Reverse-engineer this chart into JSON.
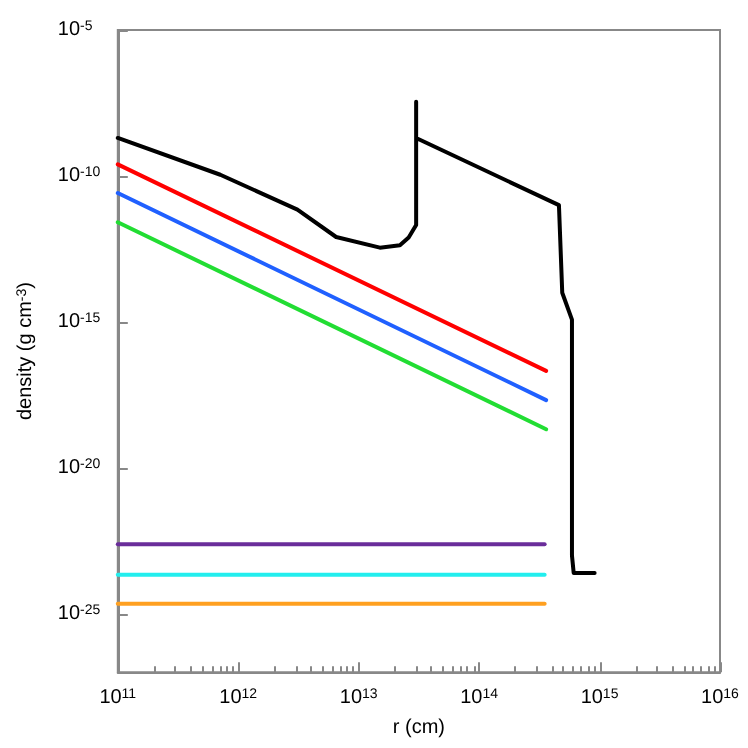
{
  "chart_data": {
    "type": "line",
    "xlabel": "r (cm)",
    "ylabel": "density (g cm$^{-3}$)",
    "log": "xy",
    "grid": false,
    "marker": "none",
    "line_style": "solid",
    "xlim": [
      100000000000.0,
      1e+16
    ],
    "ylim": [
      1e-27,
      1e-05
    ],
    "xticks": [
      {
        "value": 100000000000.0,
        "label": "10$^{11}$"
      },
      {
        "value": 1000000000000.0,
        "label": "10$^{12}$"
      },
      {
        "value": 10000000000000.0,
        "label": "10$^{13}$"
      },
      {
        "value": 100000000000000.0,
        "label": "10$^{14}$"
      },
      {
        "value": 1000000000000000.0,
        "label": "10$^{15}$"
      },
      {
        "value": 1e+16,
        "label": "10$^{16}$"
      }
    ],
    "yticks": [
      {
        "value": 1e-25,
        "label": "10$^{-25}$"
      },
      {
        "value": 1e-20,
        "label": "10$^{-20}$"
      },
      {
        "value": 1e-15,
        "label": "10$^{-15}$"
      },
      {
        "value": 1e-10,
        "label": "10$^{-10}$"
      },
      {
        "value": 1e-05,
        "label": "10$^{-5}$"
      }
    ],
    "series": [
      {
        "color": "#000000",
        "x": [
          100000000000.0,
          710000000000.0,
          3100000000000.0,
          6500000000000.0,
          15000000000000.0,
          22000000000000.0,
          26000000000000.0,
          30000000000000.0,
          30000000000000.0,
          30000000000000.0,
          460000000000000.0,
          490000000000000.0,
          590000000000000.0,
          590000000000000.0,
          610000000000000.0,
          910000000000000.0
        ],
        "values": [
          2e-09,
          1.1e-10,
          7e-12,
          8.1e-13,
          3.5e-13,
          4.2e-13,
          7.8e-13,
          2.1e-12,
          3.5e-08,
          2e-09,
          1e-11,
          1e-14,
          1.2e-15,
          1e-23,
          2.5e-24,
          2.5e-24
        ]
      },
      {
        "color": "#ff0000",
        "x": [
          100000000000.0,
          360000000000000.0
        ],
        "values": [
          2.5e-10,
          2.1e-17
        ]
      },
      {
        "color": "#2060ff",
        "x": [
          100000000000.0,
          360000000000000.0
        ],
        "values": [
          2.6e-11,
          2.1e-18
        ]
      },
      {
        "color": "#22dd33",
        "x": [
          100000000000.0,
          360000000000000.0
        ],
        "values": [
          2.6e-12,
          2.1e-19
        ]
      },
      {
        "color": "#6a2d9a",
        "x": [
          100000000000.0,
          350000000000000.0
        ],
        "values": [
          2.4e-23,
          2.4e-23
        ]
      },
      {
        "color": "#22eeee",
        "x": [
          100000000000.0,
          350000000000000.0
        ],
        "values": [
          2.2e-24,
          2.2e-24
        ]
      },
      {
        "color": "#ffa020",
        "x": [
          100000000000.0,
          350000000000000.0
        ],
        "values": [
          2.2e-25,
          2.2e-25
        ]
      }
    ]
  }
}
